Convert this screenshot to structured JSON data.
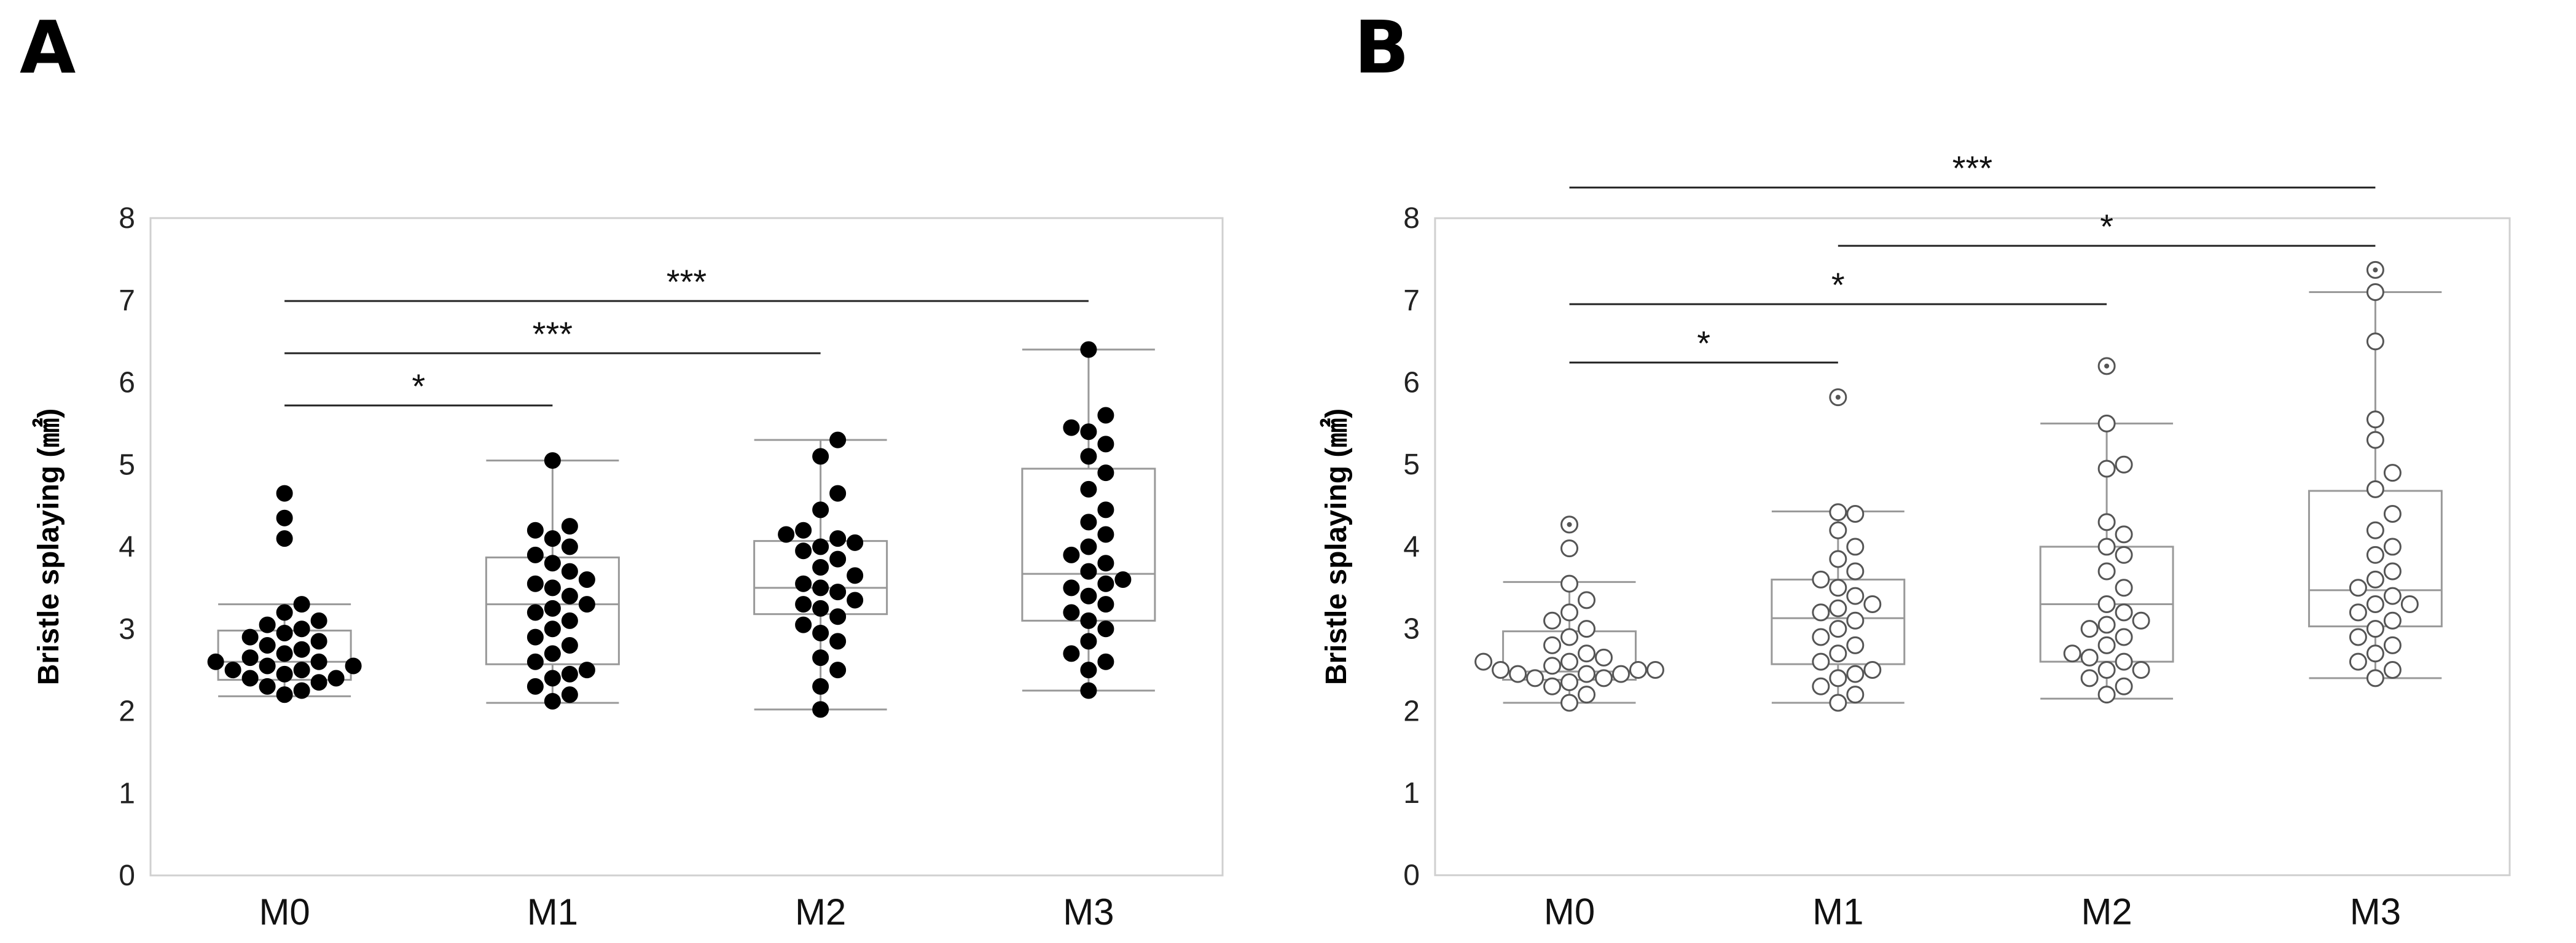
{
  "chart_data": [
    {
      "panel": "A",
      "type": "box-swarm",
      "marker": "filled",
      "title": "",
      "xlabel": "",
      "ylabel": "Bristle splaying (㎟)",
      "ylim": [
        0,
        8
      ],
      "yticks": [
        "0",
        "1",
        "2",
        "3",
        "4",
        "5",
        "6",
        "7",
        "8"
      ],
      "grid": false,
      "categories": [
        "M0",
        "M1",
        "M2",
        "M3"
      ],
      "boxes": [
        {
          "category": "M0",
          "whisker_low": 2.18,
          "q1": 2.38,
          "median": 2.6,
          "q3": 2.98,
          "whisker_high": 3.3
        },
        {
          "category": "M1",
          "whisker_low": 2.1,
          "q1": 2.57,
          "median": 3.3,
          "q3": 3.87,
          "whisker_high": 5.05
        },
        {
          "category": "M2",
          "whisker_low": 2.02,
          "q1": 3.18,
          "median": 3.5,
          "q3": 4.07,
          "whisker_high": 5.3
        },
        {
          "category": "M3",
          "whisker_low": 2.25,
          "q1": 3.1,
          "median": 3.67,
          "q3": 4.95,
          "whisker_high": 6.4
        }
      ],
      "points": [
        [
          2.2,
          2.25,
          2.3,
          2.35,
          2.4,
          2.45,
          2.5,
          2.55,
          2.55,
          2.6,
          2.6,
          2.65,
          2.7,
          2.75,
          2.8,
          2.85,
          2.9,
          2.95,
          3.0,
          3.05,
          3.1,
          3.2,
          3.3,
          2.4,
          2.5,
          4.1,
          4.35,
          4.65
        ],
        [
          2.12,
          2.2,
          2.3,
          2.4,
          2.5,
          2.6,
          2.7,
          2.8,
          2.9,
          3.0,
          3.1,
          3.2,
          3.3,
          3.4,
          3.5,
          3.6,
          3.7,
          3.8,
          3.9,
          4.0,
          4.1,
          4.2,
          4.25,
          2.45,
          3.25,
          3.55,
          5.05
        ],
        [
          2.02,
          2.3,
          2.5,
          2.65,
          2.85,
          2.95,
          3.05,
          3.15,
          3.25,
          3.35,
          3.45,
          3.5,
          3.55,
          3.65,
          3.75,
          3.85,
          3.95,
          4.0,
          4.05,
          4.1,
          4.15,
          4.2,
          4.45,
          4.65,
          5.1,
          5.3,
          3.3
        ],
        [
          2.25,
          2.5,
          2.6,
          2.7,
          2.85,
          3.0,
          3.1,
          3.2,
          3.3,
          3.4,
          3.5,
          3.55,
          3.6,
          3.7,
          3.8,
          3.9,
          4.0,
          4.15,
          4.3,
          4.45,
          4.7,
          4.9,
          5.1,
          5.25,
          5.4,
          5.45,
          5.6,
          6.4
        ]
      ],
      "significance": [
        {
          "from": "M0",
          "to": "M1",
          "label": "*"
        },
        {
          "from": "M0",
          "to": "M2",
          "label": "***"
        },
        {
          "from": "M0",
          "to": "M3",
          "label": "***"
        }
      ]
    },
    {
      "panel": "B",
      "type": "box-swarm",
      "marker": "open",
      "title": "",
      "xlabel": "",
      "ylabel": "Bristle splaying (㎟)",
      "ylim": [
        0,
        8
      ],
      "yticks": [
        "0",
        "1",
        "2",
        "3",
        "4",
        "5",
        "6",
        "7",
        "8"
      ],
      "grid": false,
      "categories": [
        "M0",
        "M1",
        "M2",
        "M3"
      ],
      "boxes": [
        {
          "category": "M0",
          "whisker_low": 2.1,
          "q1": 2.38,
          "median": 2.48,
          "q3": 2.97,
          "whisker_high": 3.57
        },
        {
          "category": "M1",
          "whisker_low": 2.1,
          "q1": 2.57,
          "median": 3.13,
          "q3": 3.6,
          "whisker_high": 4.43
        },
        {
          "category": "M2",
          "whisker_low": 2.15,
          "q1": 2.6,
          "median": 3.3,
          "q3": 4.0,
          "whisker_high": 5.5
        },
        {
          "category": "M3",
          "whisker_low": 2.4,
          "q1": 3.03,
          "median": 3.47,
          "q3": 4.68,
          "whisker_high": 7.1
        }
      ],
      "outliers": [
        {
          "category": "M0",
          "value": 4.27
        },
        {
          "category": "M1",
          "value": 5.82
        },
        {
          "category": "M2",
          "value": 6.2
        },
        {
          "category": "M3",
          "value": 7.37
        }
      ],
      "points": [
        [
          2.1,
          2.2,
          2.3,
          2.35,
          2.4,
          2.45,
          2.45,
          2.5,
          2.5,
          2.55,
          2.6,
          2.65,
          2.7,
          2.8,
          2.9,
          3.0,
          3.1,
          3.2,
          3.35,
          3.55,
          2.4,
          2.5,
          2.6,
          2.45,
          3.98
        ],
        [
          2.1,
          2.2,
          2.3,
          2.4,
          2.5,
          2.6,
          2.7,
          2.8,
          2.9,
          3.0,
          3.1,
          3.2,
          3.3,
          3.4,
          3.5,
          3.6,
          3.7,
          3.85,
          4.0,
          4.2,
          4.4,
          4.42,
          2.45,
          3.25
        ],
        [
          2.2,
          2.3,
          2.4,
          2.5,
          2.6,
          2.7,
          2.8,
          2.9,
          3.0,
          3.1,
          3.2,
          3.3,
          3.5,
          3.7,
          3.9,
          4.0,
          4.15,
          4.3,
          4.95,
          5.0,
          5.5,
          2.5,
          2.65,
          3.05
        ],
        [
          2.4,
          2.5,
          2.6,
          2.7,
          2.8,
          2.9,
          3.0,
          3.1,
          3.2,
          3.3,
          3.4,
          3.5,
          3.7,
          3.9,
          4.0,
          4.2,
          4.4,
          4.7,
          4.9,
          5.3,
          5.55,
          6.5,
          7.1,
          3.3,
          3.6
        ]
      ],
      "significance": [
        {
          "from": "M0",
          "to": "M1",
          "label": "*"
        },
        {
          "from": "M0",
          "to": "M2",
          "label": "*"
        },
        {
          "from": "M0",
          "to": "M3",
          "label": "***"
        },
        {
          "from": "M1",
          "to": "M3",
          "label": "*"
        }
      ]
    }
  ]
}
